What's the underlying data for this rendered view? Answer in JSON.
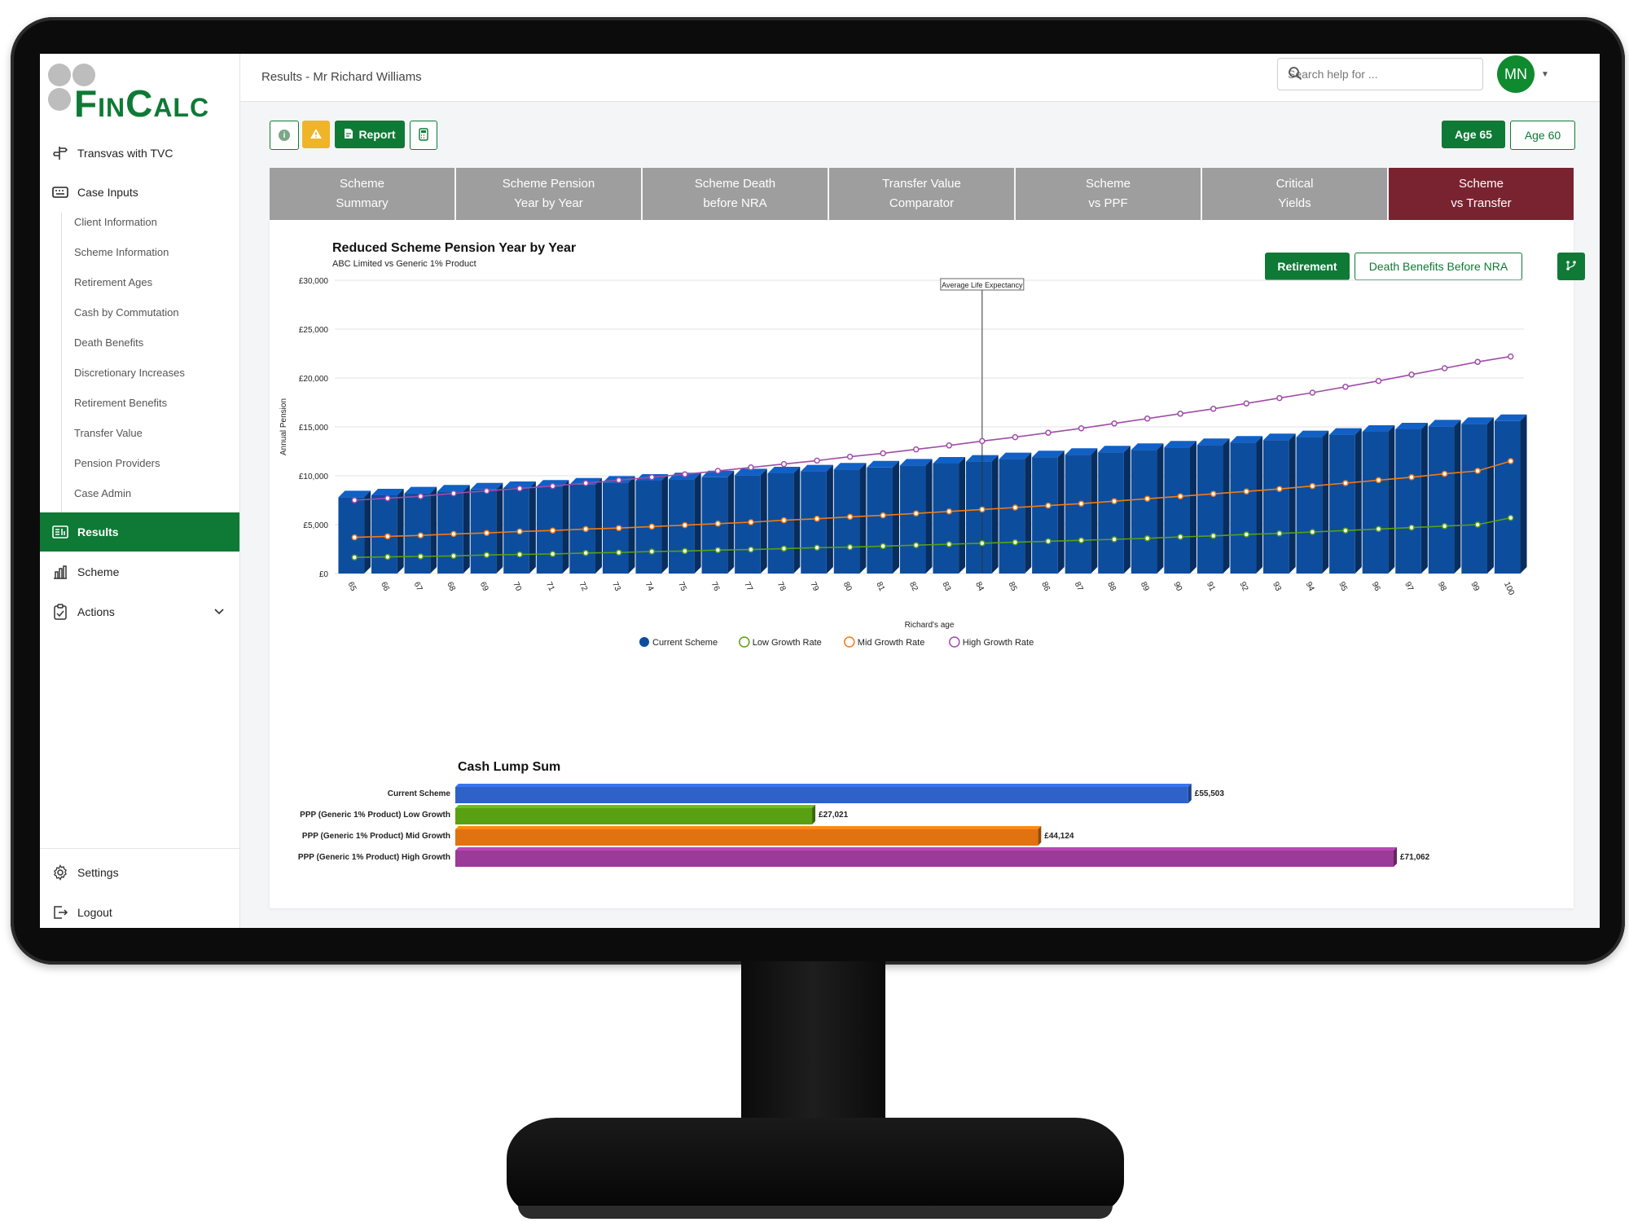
{
  "app": {
    "logo_text": "FinCalc",
    "breadcrumb": "Results - Mr Richard Williams",
    "search_placeholder": "Search help for ...",
    "user_initials": "MN",
    "colors": {
      "brand_green": "#0e7a35",
      "active_tab": "#7a2330",
      "warning": "#f0b429"
    }
  },
  "sidebar": {
    "items": [
      {
        "label": "Transvas with TVC",
        "icon": "signpost-icon"
      },
      {
        "label": "Case Inputs",
        "icon": "keyboard-icon"
      }
    ],
    "sub_items": [
      "Client Information",
      "Scheme Information",
      "Retirement Ages",
      "Cash by Commutation",
      "Death Benefits",
      "Discretionary Increases",
      "Retirement Benefits",
      "Transfer Value",
      "Pension Providers",
      "Case Admin"
    ],
    "results_label": "Results",
    "scheme_label": "Scheme",
    "actions_label": "Actions",
    "settings_label": "Settings",
    "logout_label": "Logout"
  },
  "toolbar": {
    "report_label": "Report",
    "age_buttons": [
      {
        "label": "Age 65",
        "active": true
      },
      {
        "label": "Age 60",
        "active": false
      }
    ]
  },
  "tabs": [
    {
      "line1": "Scheme",
      "line2": "Summary"
    },
    {
      "line1": "Scheme Pension",
      "line2": "Year by Year"
    },
    {
      "line1": "Scheme Death",
      "line2": "before NRA"
    },
    {
      "line1": "Transfer Value",
      "line2": "Comparator"
    },
    {
      "line1": "Scheme",
      "line2": "vs PPF"
    },
    {
      "line1": "Critical",
      "line2": "Yields"
    },
    {
      "line1": "Scheme",
      "line2": "vs Transfer",
      "active": true
    }
  ],
  "card": {
    "retirement_label": "Retirement",
    "death_benefits_label": "Death Benefits Before NRA"
  },
  "chart_data": [
    {
      "type": "bar",
      "title": "Reduced Scheme Pension Year by Year",
      "subtitle": "ABC Limited vs Generic 1% Product",
      "xlabel": "Richard's age",
      "ylabel": "Annual Pension",
      "ylim": [
        0,
        30000
      ],
      "yticks": [
        "£0",
        "£5,000",
        "£10,000",
        "£15,000",
        "£20,000",
        "£25,000",
        "£30,000"
      ],
      "yticks_values": [
        0,
        5000,
        10000,
        15000,
        20000,
        25000,
        30000
      ],
      "categories": [
        "65",
        "66",
        "67",
        "68",
        "69",
        "70",
        "71",
        "72",
        "73",
        "74",
        "75",
        "76",
        "77",
        "78",
        "79",
        "80",
        "81",
        "82",
        "83",
        "84",
        "85",
        "86",
        "87",
        "88",
        "89",
        "90",
        "91",
        "92",
        "93",
        "94",
        "95",
        "96",
        "97",
        "98",
        "99",
        "100"
      ],
      "annotation": {
        "label": "Average Life Expectancy",
        "at": "84"
      },
      "legend_position": "bottom",
      "series": [
        {
          "name": "Current Scheme",
          "kind": "bar",
          "color": "#0d4d9e",
          "values": [
            7800,
            8000,
            8200,
            8400,
            8600,
            8750,
            8900,
            9100,
            9300,
            9500,
            9650,
            9850,
            10050,
            10250,
            10450,
            10650,
            10850,
            11050,
            11250,
            11450,
            11700,
            11900,
            12150,
            12400,
            12650,
            12900,
            13150,
            13400,
            13650,
            13950,
            14200,
            14500,
            14750,
            15050,
            15300,
            15600
          ]
        },
        {
          "name": "Low Growth Rate",
          "kind": "line",
          "color": "#5aa013",
          "values": [
            1650,
            1700,
            1750,
            1800,
            1900,
            1950,
            2000,
            2100,
            2150,
            2250,
            2300,
            2400,
            2450,
            2550,
            2650,
            2700,
            2800,
            2900,
            3000,
            3100,
            3200,
            3300,
            3400,
            3500,
            3600,
            3750,
            3850,
            4000,
            4100,
            4250,
            4400,
            4550,
            4700,
            4850,
            5000,
            5700
          ]
        },
        {
          "name": "Mid Growth Rate",
          "kind": "line",
          "color": "#f07c15",
          "values": [
            3700,
            3800,
            3900,
            4050,
            4150,
            4300,
            4400,
            4550,
            4650,
            4800,
            4950,
            5100,
            5250,
            5450,
            5600,
            5800,
            5950,
            6150,
            6350,
            6550,
            6750,
            6950,
            7150,
            7400,
            7650,
            7900,
            8150,
            8400,
            8650,
            8950,
            9250,
            9550,
            9850,
            10200,
            10500,
            11500
          ]
        },
        {
          "name": "High Growth Rate",
          "kind": "line",
          "color": "#a04ca8",
          "values": [
            7500,
            7700,
            7900,
            8200,
            8450,
            8700,
            8950,
            9250,
            9550,
            9850,
            10150,
            10500,
            10850,
            11200,
            11550,
            11950,
            12300,
            12700,
            13100,
            13550,
            13950,
            14400,
            14850,
            15350,
            15850,
            16350,
            16850,
            17400,
            17950,
            18500,
            19100,
            19700,
            20350,
            21000,
            21650,
            22200
          ]
        }
      ]
    },
    {
      "type": "bar",
      "orientation": "horizontal",
      "title": "Cash Lump Sum",
      "categories": [
        "Current Scheme",
        "PPP (Generic 1% Product) Low Growth",
        "PPP (Generic 1% Product) Mid Growth",
        "PPP (Generic 1% Product) High Growth"
      ],
      "values": [
        55503,
        27021,
        44124,
        71062
      ],
      "value_labels": [
        "£55,503",
        "£27,021",
        "£44,124",
        "£71,062"
      ],
      "colors": [
        "#2f62c9",
        "#5aa013",
        "#e0730f",
        "#9b3a98"
      ],
      "xlim": [
        0,
        71062
      ]
    }
  ]
}
